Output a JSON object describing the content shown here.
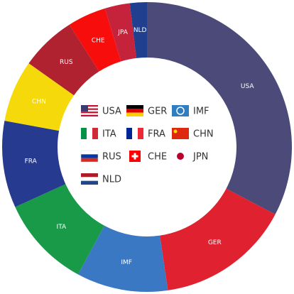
{
  "chart_data": {
    "type": "donut",
    "categories": [
      "USA",
      "GER",
      "IMF",
      "ITA",
      "FRA",
      "CHN",
      "RUS",
      "CHE",
      "JPA",
      "NLD"
    ],
    "values": [
      32.7,
      15,
      10.2,
      10.3,
      9.7,
      6.9,
      6.2,
      4.3,
      2.8,
      1.9
    ],
    "colors": [
      "#4b4a79",
      "#e0212f",
      "#3b78c4",
      "#189a48",
      "#263b8f",
      "#f6d90b",
      "#b0222f",
      "#f80d0d",
      "#c4233b",
      "#20408f"
    ],
    "legend": [
      "USA",
      "GER",
      "IMF",
      "ITA",
      "FRA",
      "CHN",
      "RUS",
      "CHE",
      "JPN",
      "NLD"
    ]
  }
}
